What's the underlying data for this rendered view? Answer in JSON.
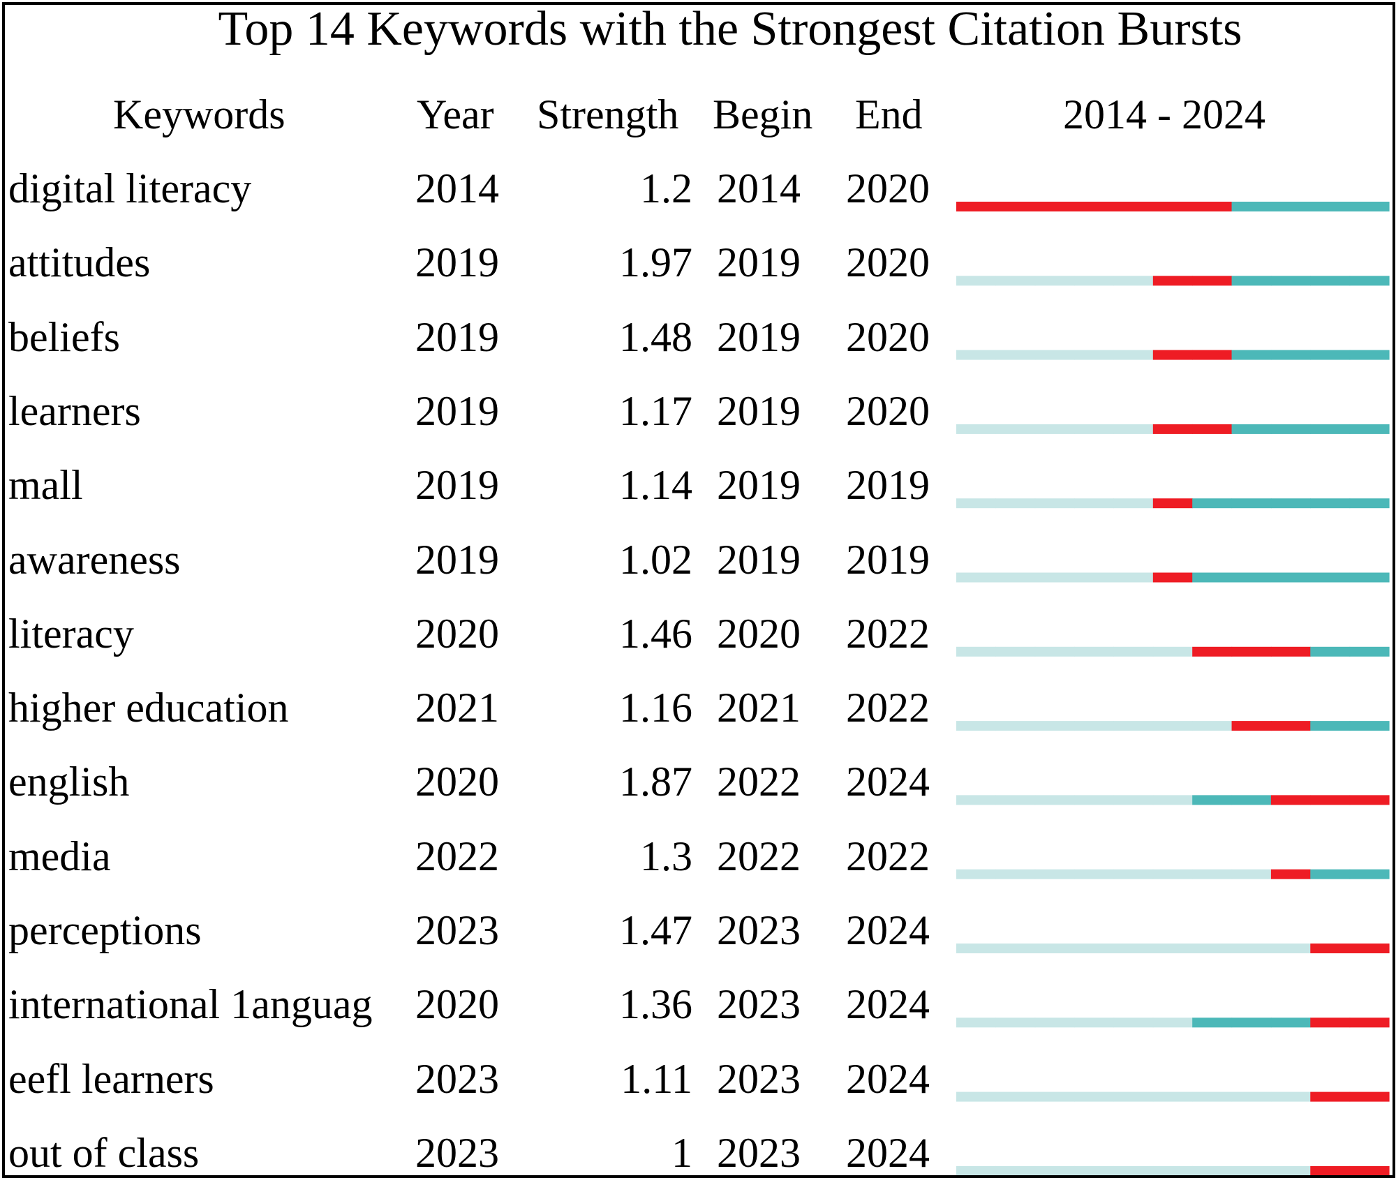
{
  "chart_data": {
    "type": "table",
    "title": "Top 14 Keywords with the Strongest Citation Bursts",
    "columns": {
      "keyword": "Keywords",
      "year": "Year",
      "strength": "Strength",
      "begin": "Begin",
      "end": "End",
      "range": "2014 - 2024"
    },
    "range_start": 2014,
    "range_end": 2024,
    "colors": {
      "burst": "#ee1c24",
      "active": "#4cb8b8",
      "inactive": "#c8e6e6"
    },
    "rows": [
      {
        "keyword": "digital literacy",
        "year": "2014",
        "strength": "1.2",
        "begin": "2014",
        "end": "2020"
      },
      {
        "keyword": "attitudes",
        "year": "2019",
        "strength": "1.97",
        "begin": "2019",
        "end": "2020"
      },
      {
        "keyword": "beliefs",
        "year": "2019",
        "strength": "1.48",
        "begin": "2019",
        "end": "2020"
      },
      {
        "keyword": "learners",
        "year": "2019",
        "strength": "1.17",
        "begin": "2019",
        "end": "2020"
      },
      {
        "keyword": "mall",
        "year": "2019",
        "strength": "1.14",
        "begin": "2019",
        "end": "2019"
      },
      {
        "keyword": "awareness",
        "year": "2019",
        "strength": "1.02",
        "begin": "2019",
        "end": "2019"
      },
      {
        "keyword": "literacy",
        "year": "2020",
        "strength": "1.46",
        "begin": "2020",
        "end": "2022"
      },
      {
        "keyword": "higher education",
        "year": "2021",
        "strength": "1.16",
        "begin": "2021",
        "end": "2022"
      },
      {
        "keyword": "english",
        "year": "2020",
        "strength": "1.87",
        "begin": "2022",
        "end": "2024"
      },
      {
        "keyword": "media",
        "year": "2022",
        "strength": "1.3",
        "begin": "2022",
        "end": "2022"
      },
      {
        "keyword": "perceptions",
        "year": "2023",
        "strength": "1.47",
        "begin": "2023",
        "end": "2024"
      },
      {
        "keyword": "international 1anguag",
        "year": "2020",
        "strength": "1.36",
        "begin": "2023",
        "end": "2024"
      },
      {
        "keyword": "eefl learners",
        "year": "2023",
        "strength": "1.11",
        "begin": "2023",
        "end": "2024"
      },
      {
        "keyword": "out of class",
        "year": "2023",
        "strength": "1",
        "begin": "2023",
        "end": "2024"
      }
    ]
  }
}
